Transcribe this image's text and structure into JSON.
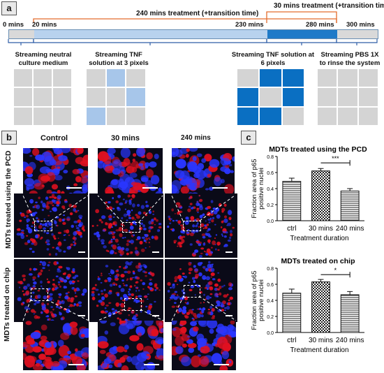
{
  "panels": {
    "a": "a",
    "b": "b",
    "c": "c"
  },
  "timeline": {
    "treatment_240": "240 mins treatment (+transition time)",
    "treatment_30": "30 mins treatment (+transition time)",
    "ticks": [
      "0 mins",
      "20 mins",
      "230 mins",
      "280 mins",
      "300 mins"
    ],
    "segment_colors": [
      "#d9d9d9",
      "#b8d2ee",
      "#1f7ac8",
      "#d9d9d9"
    ],
    "bracket_color": "#e36c2c"
  },
  "stages": [
    {
      "label": "Streaming neutral culture medium",
      "lines": [
        "Streaming neutral",
        "culture medium"
      ]
    },
    {
      "label": "Streaming TNF solution at 3 pixels",
      "lines": [
        "Streaming TNF",
        "solution at 3 pixels"
      ]
    },
    {
      "label": "Streaming TNF solution at 6 pixels",
      "lines": [
        "Streaming TNF solution at",
        "6 pixels"
      ]
    },
    {
      "label": "Streaming PBS 1X to rinse the system",
      "lines": [
        "Streaming PBS 1X",
        "to rinse the system"
      ]
    }
  ],
  "grid_patterns": {
    "neutral": [
      0,
      0,
      0,
      0,
      0,
      0,
      0,
      0,
      0
    ],
    "tnf3": [
      0,
      1,
      0,
      0,
      0,
      1,
      1,
      0,
      0
    ],
    "tnf6": [
      0,
      1,
      1,
      1,
      0,
      1,
      1,
      1,
      0
    ],
    "pbs": [
      0,
      0,
      0,
      0,
      0,
      0,
      0,
      0,
      0
    ],
    "colors": {
      "off": "#d4d4d4",
      "light": "#a7c6ea",
      "dark": "#0a6fc2"
    }
  },
  "microscopy": {
    "columns": [
      "Control",
      "30 mins",
      "240 mins"
    ],
    "rows": [
      "MDTs  treated using the PCD",
      "MDTs treated on chip"
    ],
    "stain_colors": {
      "nuclei": "#2a36ff",
      "p65": "#e01020",
      "background": "#0a0a18"
    }
  },
  "chart_data": [
    {
      "type": "bar",
      "title": "MDTs treated using the PCD",
      "categories": [
        "ctrl",
        "30 min",
        "240 mins"
      ],
      "tick_labels": [
        "ctrl",
        "30 mins",
        "240 mins"
      ],
      "values": [
        0.49,
        0.62,
        0.37
      ],
      "errors": [
        0.04,
        0.03,
        0.03
      ],
      "ylabel": "Fraction area of p65 positive nuclei",
      "xlabel": "Treatment duration",
      "ylim": [
        0.0,
        0.8
      ],
      "yticks": [
        "0.0",
        "0.2",
        "0.4",
        "0.6",
        "0.8"
      ],
      "significance": {
        "from": "30 min",
        "to": "240 mins",
        "label": "***"
      },
      "patterns": [
        "horizontal-lines",
        "checkerboard",
        "horizontal-lines"
      ]
    },
    {
      "type": "bar",
      "title": "MDTs treated on chip",
      "categories": [
        "ctrl",
        "30 mins",
        "240 mins"
      ],
      "tick_labels": [
        "ctrl",
        "30 mins",
        "240 mins"
      ],
      "values": [
        0.49,
        0.63,
        0.47
      ],
      "errors": [
        0.05,
        0.03,
        0.04
      ],
      "ylabel": "Fraction area of p65 positive nuclei",
      "xlabel": "Treatment duration",
      "ylim": [
        0.0,
        0.8
      ],
      "yticks": [
        "0.0",
        "0.2",
        "0.4",
        "0.6",
        "0.8"
      ],
      "significance": {
        "from": "30 mins",
        "to": "240 mins",
        "label": "*"
      },
      "patterns": [
        "horizontal-lines",
        "checkerboard",
        "horizontal-lines"
      ]
    }
  ]
}
